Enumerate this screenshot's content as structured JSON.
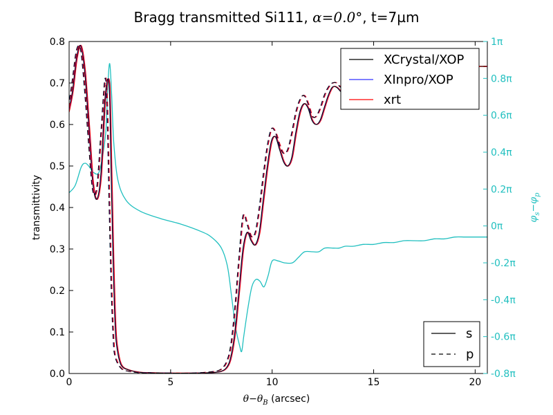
{
  "chart_data": {
    "type": "line",
    "title": "Bragg transmitted Si111, α=0.0°, t=7µm",
    "title_parts": {
      "prefix": "Bragg transmitted Si111, ",
      "math": "α=0.0°",
      "suffix": ", t=7µm"
    },
    "xlabel": "θ−θB  (arcsec)",
    "xlabel_parts": {
      "math": "θ−θ",
      "sub": "B",
      "suffix": "  (arcsec)"
    },
    "ylabel": "transmittivity",
    "y2label": "φs−φp",
    "y2label_parts": {
      "a": "φ",
      "a_sub": "s",
      "op": "−",
      "b": "φ",
      "b_sub": "p"
    },
    "xlim": [
      0,
      20.6
    ],
    "ylim": [
      0.0,
      0.8
    ],
    "y2lim": [
      -0.8,
      1.0
    ],
    "x_ticks": [
      "0",
      "5",
      "10",
      "15",
      "20"
    ],
    "x_tick_values": [
      0,
      5,
      10,
      15,
      20
    ],
    "y_ticks": [
      "0.0",
      "0.1",
      "0.2",
      "0.3",
      "0.4",
      "0.5",
      "0.6",
      "0.7",
      "0.8"
    ],
    "y_tick_values": [
      0.0,
      0.1,
      0.2,
      0.3,
      0.4,
      0.5,
      0.6,
      0.7,
      0.8
    ],
    "y2_ticks": [
      "-0.8π",
      "-0.6π",
      "-0.4π",
      "-0.2π",
      "0π",
      "0.2π",
      "0.4π",
      "0.6π",
      "0.8π",
      "1π"
    ],
    "y2_tick_values": [
      -0.8,
      -0.6,
      -0.4,
      -0.2,
      0.0,
      0.2,
      0.4,
      0.6,
      0.8,
      1.0
    ],
    "grid": false,
    "legend_sources": {
      "placement": "top-right",
      "entries": [
        {
          "label": "XCrystal/XOP",
          "color": "#000000"
        },
        {
          "label": "XInpro/XOP",
          "color": "#3333ff"
        },
        {
          "label": "xrt",
          "color": "#ff0000"
        }
      ]
    },
    "legend_polarization": {
      "placement": "bottom-right",
      "entries": [
        {
          "label": "s",
          "style": "solid"
        },
        {
          "label": "p",
          "style": "dashed"
        }
      ]
    },
    "colors": {
      "phase": "#1fbfbf",
      "xcrystal": "#000000",
      "xinpro": "#3333ff",
      "xrt": "#ff0000"
    },
    "series": [
      {
        "name": "s",
        "axis": "left",
        "x": [
          0,
          0.2,
          0.4,
          0.6,
          0.8,
          1.0,
          1.2,
          1.4,
          1.6,
          1.8,
          2.0,
          2.1,
          2.2,
          2.3,
          2.4,
          2.6,
          3.0,
          3.5,
          4.0,
          5.0,
          6.0,
          7.0,
          7.5,
          7.8,
          8.0,
          8.2,
          8.4,
          8.6,
          8.8,
          9.0,
          9.2,
          9.4,
          9.6,
          9.8,
          10.0,
          10.2,
          10.4,
          10.6,
          10.8,
          11.0,
          11.2,
          11.4,
          11.6,
          11.8,
          12.0,
          12.2,
          12.4,
          12.6,
          12.8,
          13.0,
          13.2,
          13.4,
          13.6,
          13.8,
          14.0,
          14.5,
          15.0,
          15.5,
          16.0,
          16.5,
          17.0,
          17.5,
          18.0,
          18.5,
          19.0,
          19.5,
          20.0,
          20.6
        ],
        "y": [
          0.63,
          0.68,
          0.76,
          0.79,
          0.73,
          0.6,
          0.46,
          0.42,
          0.48,
          0.66,
          0.7,
          0.5,
          0.28,
          0.12,
          0.06,
          0.02,
          0.008,
          0.003,
          0.002,
          0.001,
          0.001,
          0.002,
          0.005,
          0.015,
          0.04,
          0.1,
          0.2,
          0.3,
          0.34,
          0.32,
          0.31,
          0.34,
          0.42,
          0.5,
          0.56,
          0.57,
          0.54,
          0.51,
          0.5,
          0.52,
          0.58,
          0.63,
          0.65,
          0.64,
          0.61,
          0.6,
          0.61,
          0.64,
          0.67,
          0.69,
          0.69,
          0.68,
          0.67,
          0.68,
          0.7,
          0.73,
          0.71,
          0.73,
          0.72,
          0.74,
          0.73,
          0.74,
          0.73,
          0.74,
          0.74,
          0.74,
          0.74,
          0.74
        ]
      },
      {
        "name": "p",
        "axis": "left",
        "x": [
          0,
          0.2,
          0.4,
          0.6,
          0.8,
          1.0,
          1.2,
          1.4,
          1.6,
          1.8,
          1.9,
          2.0,
          2.1,
          2.2,
          2.3,
          2.6,
          3.0,
          3.5,
          4.0,
          5.0,
          6.0,
          7.0,
          7.5,
          7.8,
          8.0,
          8.2,
          8.4,
          8.6,
          8.8,
          9.0,
          9.2,
          9.4,
          9.6,
          9.8,
          10.0,
          10.2,
          10.4,
          10.6,
          10.8,
          11.0,
          11.2,
          11.4,
          11.6,
          11.8,
          12.0,
          12.2,
          12.4,
          12.6,
          12.8,
          13.0,
          13.2,
          13.4,
          13.6,
          13.8,
          14.0,
          14.5,
          15.0,
          15.5,
          16.0,
          16.5,
          17.0,
          17.5,
          18.0,
          18.5,
          19.0,
          19.5,
          20.0,
          20.6
        ],
        "y": [
          0.64,
          0.71,
          0.78,
          0.78,
          0.68,
          0.55,
          0.44,
          0.45,
          0.58,
          0.71,
          0.64,
          0.42,
          0.22,
          0.09,
          0.04,
          0.012,
          0.005,
          0.002,
          0.001,
          0.001,
          0.001,
          0.004,
          0.01,
          0.03,
          0.07,
          0.16,
          0.28,
          0.38,
          0.36,
          0.33,
          0.34,
          0.4,
          0.48,
          0.55,
          0.59,
          0.58,
          0.55,
          0.53,
          0.54,
          0.58,
          0.63,
          0.66,
          0.67,
          0.65,
          0.62,
          0.62,
          0.64,
          0.67,
          0.69,
          0.7,
          0.7,
          0.69,
          0.69,
          0.7,
          0.72,
          0.73,
          0.72,
          0.73,
          0.73,
          0.74,
          0.73,
          0.74,
          0.74,
          0.74,
          0.74,
          0.74,
          0.74,
          0.74
        ]
      },
      {
        "name": "φs−φp",
        "axis": "right",
        "x": [
          0,
          0.3,
          0.6,
          0.8,
          1.0,
          1.2,
          1.5,
          1.8,
          1.9,
          2.0,
          2.1,
          2.2,
          2.4,
          2.8,
          3.5,
          4.5,
          5.5,
          6.5,
          7.0,
          7.5,
          7.8,
          8.0,
          8.2,
          8.4,
          8.5,
          8.6,
          8.8,
          9.0,
          9.2,
          9.4,
          9.6,
          9.8,
          10.0,
          10.3,
          10.6,
          11.0,
          11.3,
          11.6,
          12.0,
          12.3,
          12.6,
          13.0,
          13.3,
          13.6,
          14.0,
          14.5,
          15.0,
          15.5,
          16.0,
          16.5,
          17.0,
          17.5,
          18.0,
          18.5,
          19.0,
          19.5,
          20.0,
          20.6
        ],
        "y": [
          0.18,
          0.22,
          0.32,
          0.34,
          0.32,
          0.29,
          0.3,
          0.5,
          0.75,
          0.88,
          0.7,
          0.45,
          0.25,
          0.14,
          0.08,
          0.04,
          0.01,
          -0.03,
          -0.06,
          -0.12,
          -0.22,
          -0.38,
          -0.55,
          -0.65,
          -0.68,
          -0.6,
          -0.45,
          -0.33,
          -0.29,
          -0.3,
          -0.33,
          -0.27,
          -0.19,
          -0.19,
          -0.2,
          -0.2,
          -0.17,
          -0.14,
          -0.14,
          -0.14,
          -0.12,
          -0.12,
          -0.12,
          -0.11,
          -0.11,
          -0.1,
          -0.1,
          -0.09,
          -0.09,
          -0.08,
          -0.08,
          -0.08,
          -0.07,
          -0.07,
          -0.06,
          -0.06,
          -0.06,
          -0.06
        ]
      }
    ]
  }
}
